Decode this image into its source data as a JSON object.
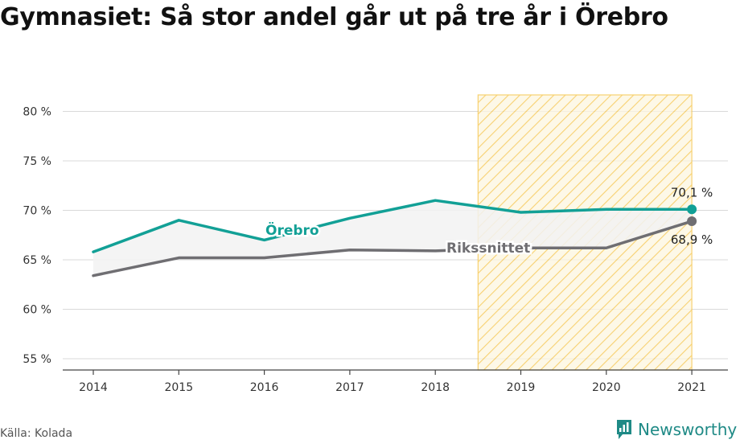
{
  "title": "Gymnasiet: Så stor andel går ut på tre år i Örebro",
  "source": "Källa: Kolada",
  "brand": {
    "name": "Newsworthy",
    "color": "#1f8a86",
    "icon": "chart-speech-bubble-icon"
  },
  "colors": {
    "orebro": "#12a096",
    "riks": "#6f6e72",
    "highlight": "#f5c242",
    "fill": "#f2f2f2"
  },
  "chart_data": {
    "type": "line",
    "x": [
      "2014",
      "2015",
      "2016",
      "2017",
      "2018",
      "2019",
      "2020",
      "2021"
    ],
    "yticks": [
      "55 %",
      "60 %",
      "65 %",
      "70 %",
      "75 %",
      "80 %"
    ],
    "ylim": [
      54,
      81.5
    ],
    "grid": true,
    "highlight_range": [
      "2019",
      "2021"
    ],
    "series": [
      {
        "name": "Örebro",
        "values": [
          65.8,
          69.0,
          67.0,
          69.2,
          71.0,
          69.8,
          70.1,
          70.1
        ],
        "end_label": "70,1 %"
      },
      {
        "name": "Rikssnittet",
        "values": [
          63.4,
          65.2,
          65.2,
          66.0,
          65.9,
          66.2,
          66.2,
          68.9
        ],
        "end_label": "68,9 %"
      }
    ]
  }
}
